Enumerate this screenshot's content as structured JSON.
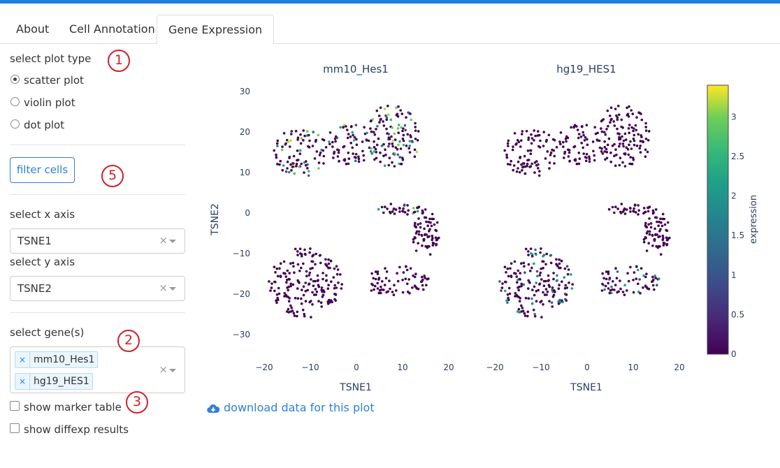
{
  "tabs": [
    {
      "label": "About"
    },
    {
      "label": "Cell Annotation"
    },
    {
      "label": "Gene Expression"
    }
  ],
  "sidebar": {
    "plot_type_label": "select plot type",
    "plot_types": [
      "scatter plot",
      "violin plot",
      "dot plot"
    ],
    "selected_plot_type": "scatter plot",
    "filter_button": "filter cells",
    "x_axis_label": "select x axis",
    "x_axis_value": "TSNE1",
    "y_axis_label": "select y axis",
    "y_axis_value": "TSNE2",
    "genes_label": "select gene(s)",
    "genes": [
      "mm10_Hes1",
      "hg19_HES1"
    ],
    "clear_glyph": "×",
    "show_marker_table": "show marker table",
    "show_diffexp": "show diffexp results"
  },
  "annotations": [
    "1",
    "5",
    "2",
    "3"
  ],
  "download_link": "download data for this plot",
  "colors": {
    "accent": "#1f7fe0",
    "link": "#2f80d8",
    "annotation": "#d0202b",
    "point_low": "#440154"
  },
  "chart_data": {
    "type": "scatter",
    "panels": [
      {
        "title": "mm10_Hes1"
      },
      {
        "title": "hg19_HES1"
      }
    ],
    "xlabel": "TSNE1",
    "ylabel": "TSNE2",
    "x_ticks": [
      -20,
      -10,
      0,
      10,
      20
    ],
    "y_ticks": [
      30,
      20,
      10,
      0,
      -10,
      -20,
      -30
    ],
    "xlim": [
      -20,
      20
    ],
    "ylim": [
      -32,
      30
    ],
    "colorbar": {
      "label": "expression",
      "ticks": [
        "3",
        "2.5",
        "2",
        "1.5",
        "1",
        "0.5",
        "0"
      ],
      "range": [
        0,
        3.4
      ],
      "colorscale": "viridis"
    },
    "clusters": [
      {
        "name": "upper-left",
        "cx": -12,
        "cy": 15,
        "rx": 6,
        "ry": 6,
        "n": 90
      },
      {
        "name": "upper-middle",
        "cx": -1,
        "cy": 17,
        "rx": 6,
        "ry": 5,
        "n": 70
      },
      {
        "name": "upper-right",
        "cx": 8,
        "cy": 19,
        "rx": 6,
        "ry": 8,
        "n": 120
      },
      {
        "name": "lower-left",
        "cx": -11,
        "cy": -17,
        "rx": 8,
        "ry": 9,
        "n": 180
      },
      {
        "name": "lower-middle",
        "cx": 9,
        "cy": -17,
        "rx": 7,
        "ry": 4,
        "n": 70
      },
      {
        "name": "right-arc",
        "cx": 15,
        "cy": -5,
        "rx": 3,
        "ry": 6,
        "n": 70
      },
      {
        "name": "top-arc",
        "cx": 9,
        "cy": 1,
        "rx": 5,
        "ry": 1.5,
        "n": 35
      }
    ]
  }
}
